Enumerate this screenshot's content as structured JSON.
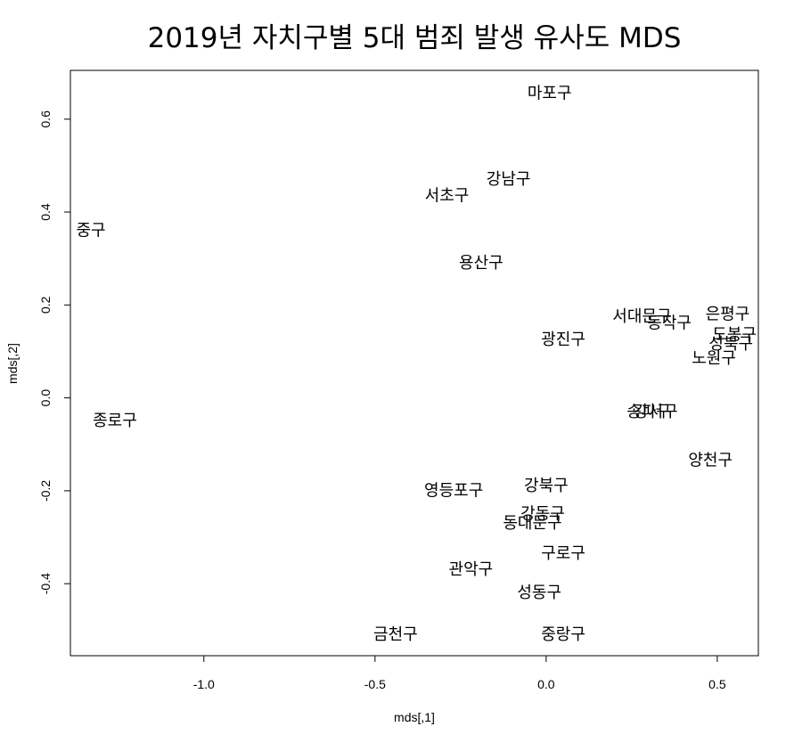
{
  "chart_data": {
    "type": "scatter",
    "title": "2019년 자치구별 5대 범죄 발생 유사도 MDS",
    "xlabel": "mds[,1]",
    "ylabel": "mds[,2]",
    "xlim": [
      -1.39,
      0.62
    ],
    "ylim": [
      -0.555,
      0.705
    ],
    "xticks": [
      -1.0,
      -0.5,
      0.0,
      0.5
    ],
    "yticks": [
      -0.4,
      -0.2,
      0.0,
      0.2,
      0.4,
      0.6
    ],
    "xtick_labels": [
      "-1.0",
      "-0.5",
      "0.0",
      "0.5"
    ],
    "ytick_labels": [
      "-0.4",
      "-0.2",
      "0.0",
      "0.2",
      "0.4",
      "0.6"
    ],
    "grid": false,
    "points": [
      {
        "label": "마포구",
        "x": 0.01,
        "y": 0.655
      },
      {
        "label": "강남구",
        "x": -0.11,
        "y": 0.47
      },
      {
        "label": "서초구",
        "x": -0.29,
        "y": 0.435
      },
      {
        "label": "중구",
        "x": -1.33,
        "y": 0.36
      },
      {
        "label": "용산구",
        "x": -0.19,
        "y": 0.29
      },
      {
        "label": "은평구",
        "x": 0.53,
        "y": 0.18
      },
      {
        "label": "서대문구",
        "x": 0.28,
        "y": 0.175
      },
      {
        "label": "동작구",
        "x": 0.36,
        "y": 0.16
      },
      {
        "label": "도봉구",
        "x": 0.55,
        "y": 0.135
      },
      {
        "label": "광진구",
        "x": 0.05,
        "y": 0.125
      },
      {
        "label": "성북구",
        "x": 0.54,
        "y": 0.115
      },
      {
        "label": "노원구",
        "x": 0.49,
        "y": 0.085
      },
      {
        "label": "강서구",
        "x": 0.32,
        "y": -0.03
      },
      {
        "label": "송파구",
        "x": 0.3,
        "y": -0.03
      },
      {
        "label": "종로구",
        "x": -1.26,
        "y": -0.05
      },
      {
        "label": "양천구",
        "x": 0.48,
        "y": -0.135
      },
      {
        "label": "강북구",
        "x": 0.0,
        "y": -0.19
      },
      {
        "label": "영등포구",
        "x": -0.27,
        "y": -0.2
      },
      {
        "label": "강동구",
        "x": -0.01,
        "y": -0.25
      },
      {
        "label": "동대문구",
        "x": -0.04,
        "y": -0.27
      },
      {
        "label": "구로구",
        "x": 0.05,
        "y": -0.335
      },
      {
        "label": "관악구",
        "x": -0.22,
        "y": -0.37
      },
      {
        "label": "성동구",
        "x": -0.02,
        "y": -0.42
      },
      {
        "label": "금천구",
        "x": -0.44,
        "y": -0.51
      },
      {
        "label": "중랑구",
        "x": 0.05,
        "y": -0.51
      }
    ]
  }
}
